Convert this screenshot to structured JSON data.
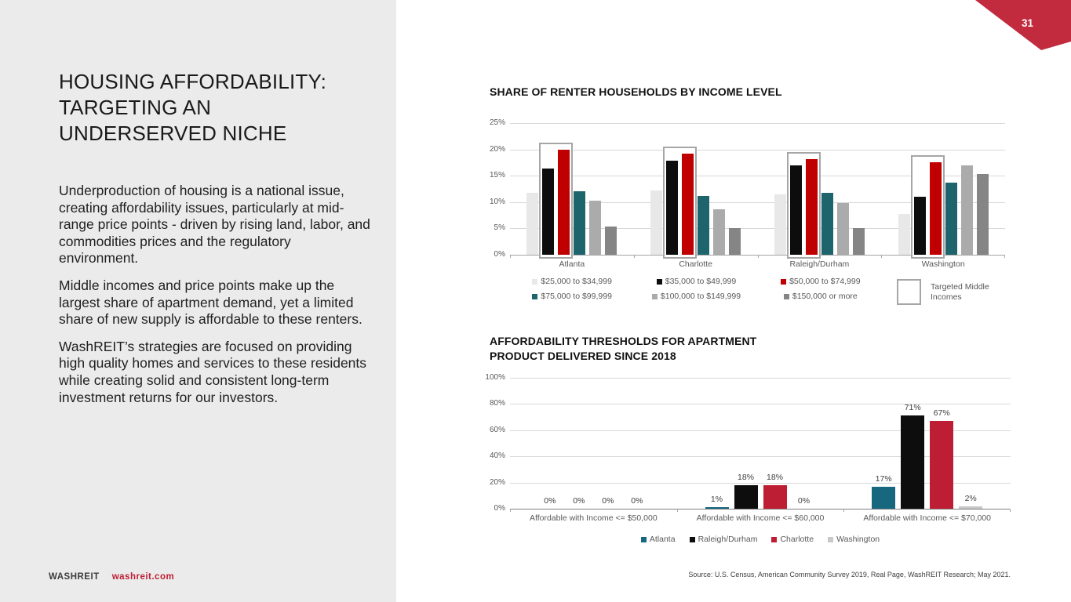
{
  "page": {
    "number": "31"
  },
  "left_panel": {
    "title": "HOUSING AFFORDABILITY: TARGETING AN UNDERSERVED NICHE",
    "paragraphs": [
      "Underproduction of housing is a national issue, creating affordability issues, particularly at mid-range price points - driven by rising land, labor, and commodities prices and the regulatory environment.",
      "Middle incomes and price points make up the largest share of apartment demand, yet a limited share of new supply is affordable to these renters.",
      "WashREIT’s strategies are focused on providing high quality homes and services to these residents while creating solid and consistent long-term investment returns for our investors."
    ],
    "footer": {
      "brand": "WASHREIT",
      "website": "washreit.com"
    }
  },
  "source": "Source: U.S. Census, American Community Survey 2019, Real Page, WashREIT Research; May 2021.",
  "colors": {
    "panel_bg": "#ebebeb",
    "brand_red": "#be1e33",
    "ribbon_red": "#c22a3e",
    "gridline": "#d9d9d9",
    "axis_text": "#595959"
  },
  "chart_data": [
    {
      "type": "bar",
      "title": "SHARE OF RENTER HOUSEHOLDS BY INCOME LEVEL",
      "categories": [
        "Atlanta",
        "Charlotte",
        "Raleigh/Durham",
        "Washington"
      ],
      "series": [
        {
          "name": "$25,000 to $34,999",
          "color": "#e8e8e8",
          "values": [
            11.8,
            12.2,
            11.5,
            7.7
          ]
        },
        {
          "name": "$35,000 to $49,999",
          "color": "#0d0d0d",
          "values": [
            16.4,
            17.8,
            17.0,
            11.0
          ]
        },
        {
          "name": "$50,000 to $74,999",
          "color": "#c00000",
          "values": [
            20.0,
            19.2,
            18.1,
            17.5
          ]
        },
        {
          "name": "$75,000 to $99,999",
          "color": "#1d646c",
          "values": [
            12.1,
            11.2,
            11.7,
            13.7
          ]
        },
        {
          "name": "$100,000 to $149,999",
          "color": "#ababab",
          "values": [
            10.2,
            8.7,
            9.8,
            17.0
          ]
        },
        {
          "name": "$150,000 or more",
          "color": "#858585",
          "values": [
            5.3,
            5.0,
            5.1,
            15.3
          ]
        }
      ],
      "highlight": {
        "label": "Targeted Middle Incomes",
        "series_indexes": [
          1,
          2
        ]
      },
      "ylim": [
        0,
        25
      ],
      "yticks": [
        "0%",
        "5%",
        "10%",
        "15%",
        "20%",
        "25%"
      ],
      "grid": true,
      "legend_position": "bottom"
    },
    {
      "type": "bar",
      "title": "AFFORDABILITY THRESHOLDS FOR APARTMENT PRODUCT DELIVERED SINCE 2018",
      "title_lines": [
        "AFFORDABILITY THRESHOLDS FOR APARTMENT",
        "PRODUCT DELIVERED SINCE 2018"
      ],
      "categories": [
        "Affordable with Income <= $50,000",
        "Affordable with Income <= $60,000",
        "Affordable with Income <= $70,000"
      ],
      "series": [
        {
          "name": "Atlanta",
          "color": "#17687f",
          "values": [
            0,
            1,
            17
          ]
        },
        {
          "name": "Raleigh/Durham",
          "color": "#0d0d0d",
          "values": [
            0,
            18,
            71
          ]
        },
        {
          "name": "Charlotte",
          "color": "#be1e33",
          "values": [
            0,
            18,
            67
          ]
        },
        {
          "name": "Washington",
          "color": "#c8c8c8",
          "values": [
            0,
            0,
            2
          ]
        }
      ],
      "data_labels": true,
      "ylim": [
        0,
        100
      ],
      "yticks": [
        "0%",
        "20%",
        "40%",
        "60%",
        "80%",
        "100%"
      ],
      "grid": true,
      "legend_position": "bottom"
    }
  ]
}
